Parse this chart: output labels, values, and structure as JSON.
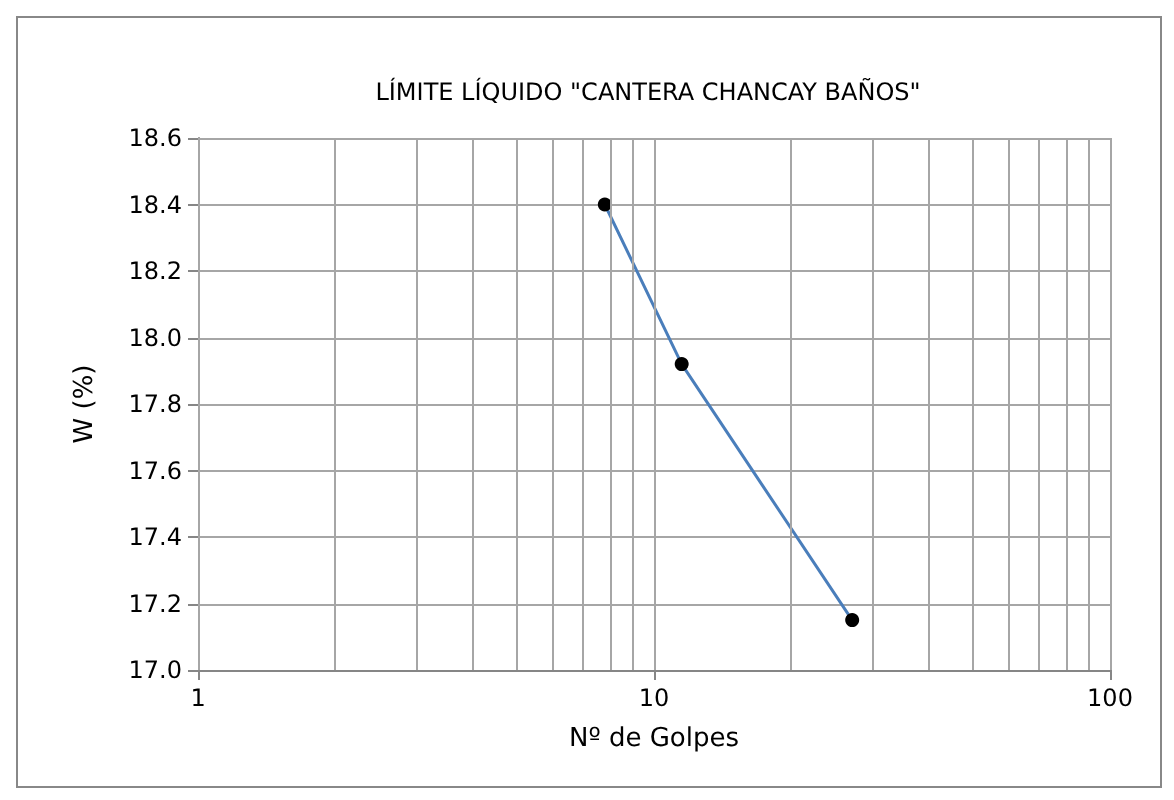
{
  "chart_data": {
    "type": "line",
    "title": "LÍMITE LÍQUIDO \"CANTERA CHANCAY BAÑOS\"",
    "xlabel": "Nº de Golpes",
    "ylabel": "W (%)",
    "x": [
      7.8,
      11.5,
      27.2
    ],
    "series": [
      {
        "color": "#4a7ebb",
        "values": [
          18.4,
          17.92,
          17.15
        ]
      }
    ],
    "log": "x",
    "xlim": [
      1,
      100
    ],
    "xticks": [
      1,
      10,
      100
    ],
    "ylim": [
      17.0,
      18.6
    ],
    "yticks": [
      {
        "value": 17.0,
        "label": "17.0"
      },
      {
        "value": 17.2,
        "label": "17.2"
      },
      {
        "value": 17.4,
        "label": "17.4"
      },
      {
        "value": 17.6,
        "label": "17.6"
      },
      {
        "value": 17.8,
        "label": "17.8"
      },
      {
        "value": 18.0,
        "label": "18.0"
      },
      {
        "value": 18.2,
        "label": "18.2"
      },
      {
        "value": 18.4,
        "label": "18.4"
      },
      {
        "value": 18.6,
        "label": "18.6"
      }
    ],
    "grid": true,
    "marker": "circle",
    "line_style": "solid"
  }
}
